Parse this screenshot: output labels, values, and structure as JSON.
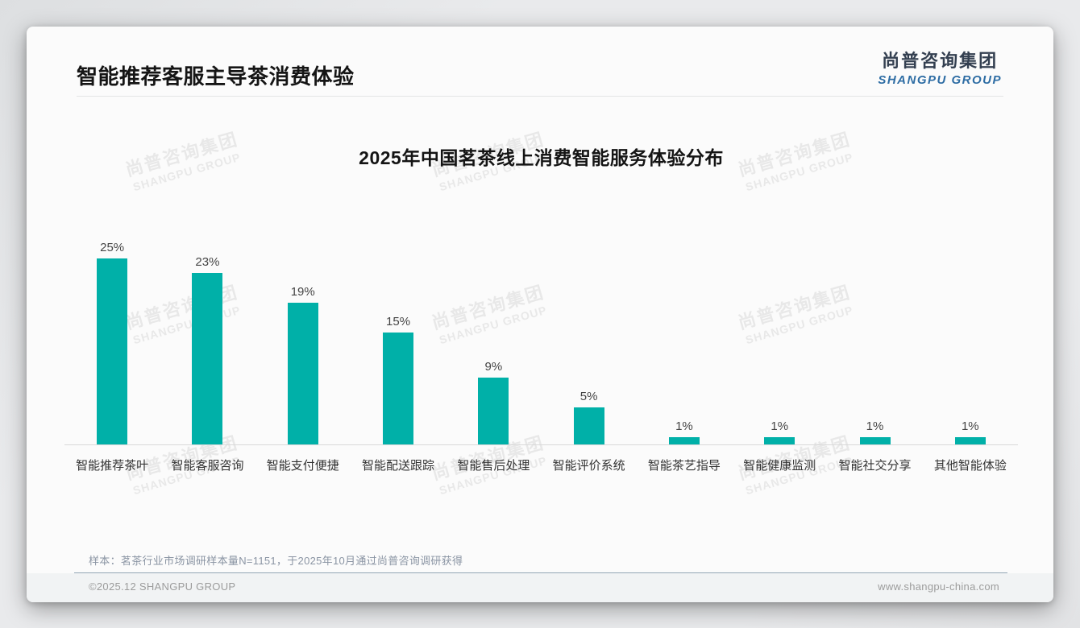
{
  "page": {
    "title": "智能推荐客服主导茶消费体验",
    "logo": {
      "cn": "尚普咨询集团",
      "en": "SHANGPU GROUP"
    },
    "watermark": {
      "cn": "尚普咨询集团",
      "en": "SHANGPU GROUP"
    },
    "footer": {
      "sample_note": "样本：茗茶行业市场调研样本量N=1151，于2025年10月通过尚普咨询调研获得",
      "copyright": "©2025.12 SHANGPU GROUP",
      "website": "www.shangpu-china.com"
    }
  },
  "chart_data": {
    "type": "bar",
    "title": "2025年中国茗茶线上消费智能服务体验分布",
    "categories": [
      "智能推荐茶叶",
      "智能客服咨询",
      "智能支付便捷",
      "智能配送跟踪",
      "智能售后处理",
      "智能评价系统",
      "智能茶艺指导",
      "智能健康监测",
      "智能社交分享",
      "其他智能体验"
    ],
    "values": [
      25,
      23,
      19,
      15,
      9,
      5,
      1,
      1,
      1,
      1
    ],
    "unit": "%",
    "data_labels": true,
    "bar_color": "#00B0A8",
    "label_color": "#454545",
    "axis_color": "#d9d9d9",
    "ylim": [
      0,
      28
    ],
    "grid": false,
    "legend": false,
    "xlabel": "",
    "ylabel": ""
  }
}
